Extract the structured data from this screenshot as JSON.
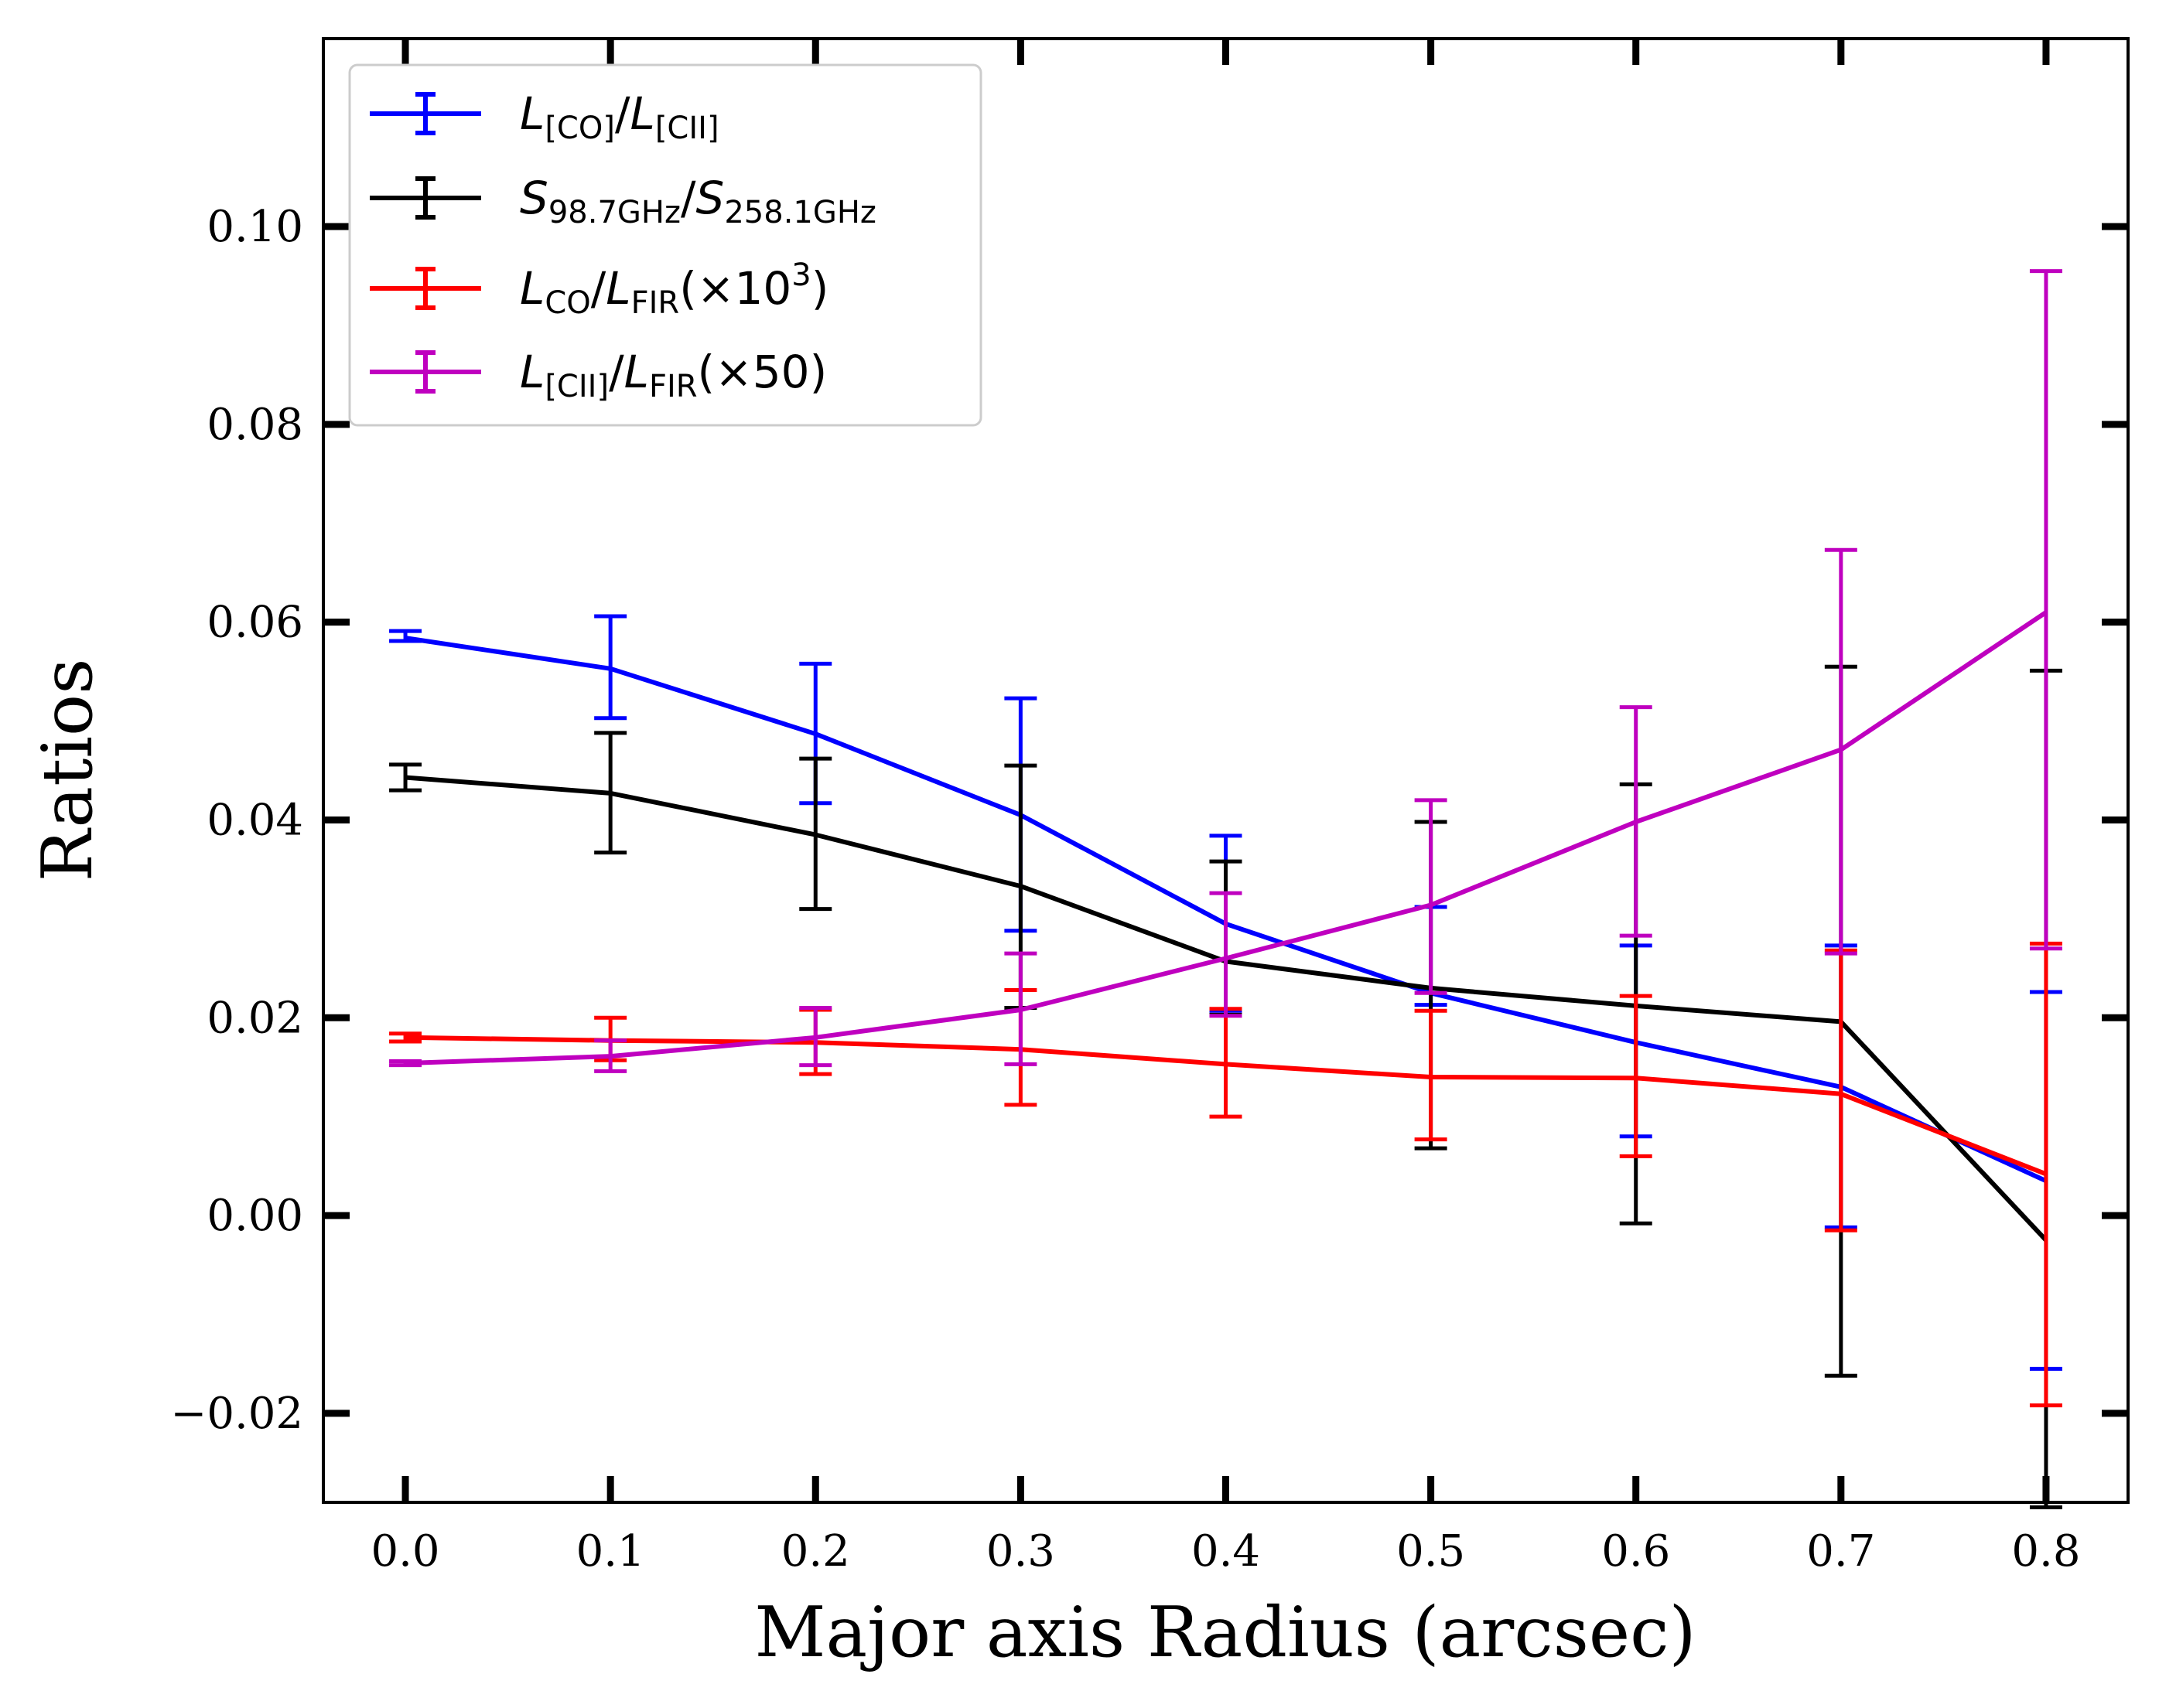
{
  "chart_data": {
    "type": "line",
    "xlabel": "Major axis Radius (arcsec)",
    "ylabel": "Ratios",
    "xlim": [
      -0.04,
      0.84
    ],
    "ylim": [
      -0.029,
      0.119
    ],
    "xticks": [
      0.0,
      0.1,
      0.2,
      0.3,
      0.4,
      0.5,
      0.6,
      0.7,
      0.8
    ],
    "xtick_labels": [
      "0.0",
      "0.1",
      "0.2",
      "0.3",
      "0.4",
      "0.5",
      "0.6",
      "0.7",
      "0.8"
    ],
    "yticks": [
      -0.02,
      0.0,
      0.02,
      0.04,
      0.06,
      0.08,
      0.1
    ],
    "ytick_labels": [
      "−0.02",
      "0.00",
      "0.02",
      "0.04",
      "0.06",
      "0.08",
      "0.10"
    ],
    "grid": false,
    "legend_position": "top-left",
    "x": [
      0.0,
      0.1,
      0.2,
      0.3,
      0.4,
      0.5,
      0.6,
      0.7,
      0.8
    ],
    "series": [
      {
        "key": "co_cii",
        "name": "L[CO]/L[CII]",
        "color": "#0000ff",
        "values": [
          0.0584,
          0.0553,
          0.0487,
          0.0405,
          0.0295,
          0.0225,
          0.0175,
          0.013,
          0.0035
        ],
        "err_low": [
          0.0581,
          0.0503,
          0.0417,
          0.0288,
          0.0207,
          0.0213,
          0.008,
          -0.0012,
          -0.0155
        ],
        "err_high": [
          0.0591,
          0.0606,
          0.0558,
          0.0523,
          0.0384,
          0.0312,
          0.0273,
          0.0273,
          0.0226
        ]
      },
      {
        "key": "s_ratio",
        "name": "S98.7GHz/S258.1GHz",
        "color": "#000000",
        "values": [
          0.0443,
          0.0427,
          0.0385,
          0.0333,
          0.0257,
          0.023,
          0.0212,
          0.0196,
          -0.0025
        ],
        "err_low": [
          0.043,
          0.0367,
          0.031,
          0.021,
          0.0203,
          0.0068,
          -0.0008,
          -0.0162,
          -0.0295
        ],
        "err_high": [
          0.0456,
          0.0488,
          0.0462,
          0.0455,
          0.0358,
          0.0398,
          0.0436,
          0.0555,
          0.0551
        ]
      },
      {
        "key": "co_fir",
        "name": "LCO/LFIR(×10³)",
        "color": "#ff0000",
        "values": [
          0.018,
          0.0177,
          0.0175,
          0.0168,
          0.0153,
          0.014,
          0.0139,
          0.0123,
          0.0042
        ],
        "err_low": [
          0.0176,
          0.0157,
          0.0143,
          0.0112,
          0.01,
          0.0077,
          0.006,
          -0.0015,
          -0.0192
        ],
        "err_high": [
          0.0184,
          0.02,
          0.0208,
          0.0228,
          0.0209,
          0.0207,
          0.0222,
          0.0268,
          0.0275
        ]
      },
      {
        "key": "cii_fir",
        "name": "L[CII]/LFIR(×50)",
        "color": "#bf00bf",
        "values": [
          0.0154,
          0.0161,
          0.018,
          0.0208,
          0.026,
          0.0314,
          0.0398,
          0.0471,
          0.061
        ],
        "err_low": [
          0.0152,
          0.0146,
          0.0152,
          0.0153,
          0.0202,
          0.0225,
          0.0283,
          0.0265,
          0.027
        ],
        "err_high": [
          0.0156,
          0.0177,
          0.021,
          0.0265,
          0.0326,
          0.042,
          0.0514,
          0.0673,
          0.0955
        ]
      }
    ]
  },
  "legend": {
    "co_cii": {
      "a": "L",
      "a_sub": "[CO]",
      "sep": "/",
      "b": "L",
      "b_sub": "[CII]"
    },
    "s_ratio": {
      "a": "S",
      "a_sub": "98.7GHz",
      "sep": "/",
      "b": "S",
      "b_sub": "258.1GHz"
    },
    "co_fir": {
      "a": "L",
      "a_sub": "CO",
      "sep": "/",
      "b": "L",
      "b_sub": "FIR",
      "suffix": "(×10",
      "sup": "3",
      "close": ")"
    },
    "cii_fir": {
      "a": "L",
      "a_sub": "[CII]",
      "sep": "/",
      "b": "L",
      "b_sub": "FIR",
      "suffix": "(×50)"
    }
  }
}
